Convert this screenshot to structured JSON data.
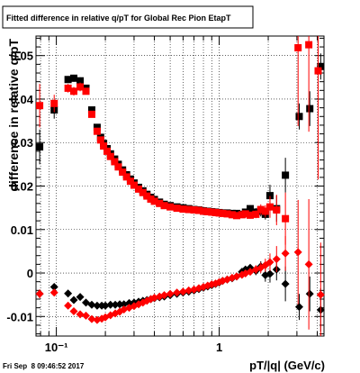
{
  "chart_data": {
    "type": "scatter",
    "title": "Fitted difference in relative q/pT for Global Rec Pion EtapT",
    "xlabel": "pT/|q| (GeV/c)",
    "ylabel": "difference in relative q/pT",
    "xscale": "log",
    "xlim": [
      0.075,
      4.4
    ],
    "ylim": [
      -0.0145,
      0.0545
    ],
    "x_ticks": [
      {
        "value": 0.1,
        "label": "10⁻¹"
      },
      {
        "value": 1,
        "label": "1"
      }
    ],
    "y_ticks": [
      {
        "value": -0.01,
        "label": "-0.01"
      },
      {
        "value": 0,
        "label": "0"
      },
      {
        "value": 0.01,
        "label": "0.01"
      },
      {
        "value": 0.02,
        "label": "0.02"
      },
      {
        "value": 0.03,
        "label": "0.03"
      },
      {
        "value": 0.04,
        "label": "0.04"
      },
      {
        "value": 0.05,
        "label": "0.05"
      }
    ],
    "grid": true,
    "footer": "Fri Sep  8 09:46:52 2017",
    "series": [
      {
        "marker": "square",
        "color": "#000000",
        "points": [
          [
            0.079,
            0.029,
            0.004
          ],
          [
            0.097,
            0.0375,
            0.002
          ],
          [
            0.118,
            0.0445,
            0.0008
          ],
          [
            0.128,
            0.0448,
            0.0008
          ],
          [
            0.14,
            0.0442,
            0.0008
          ],
          [
            0.152,
            0.0425,
            0.0005
          ],
          [
            0.165,
            0.0375,
            0.0004
          ],
          [
            0.178,
            0.0335,
            0.0004
          ],
          [
            0.187,
            0.0312,
            0.0003
          ],
          [
            0.195,
            0.0298,
            0.0003
          ],
          [
            0.205,
            0.0286,
            0.0003
          ],
          [
            0.215,
            0.0274,
            0.0003
          ],
          [
            0.228,
            0.0262,
            0.0003
          ],
          [
            0.24,
            0.025,
            0.0003
          ],
          [
            0.255,
            0.0237,
            0.0003
          ],
          [
            0.27,
            0.0226,
            0.0003
          ],
          [
            0.285,
            0.0216,
            0.0003
          ],
          [
            0.3,
            0.0207,
            0.0003
          ],
          [
            0.32,
            0.0197,
            0.0003
          ],
          [
            0.34,
            0.0189,
            0.0003
          ],
          [
            0.36,
            0.0181,
            0.0003
          ],
          [
            0.38,
            0.0174,
            0.0003
          ],
          [
            0.4,
            0.0169,
            0.0003
          ],
          [
            0.43,
            0.0163,
            0.0003
          ],
          [
            0.46,
            0.0158,
            0.0003
          ],
          [
            0.5,
            0.0155,
            0.0003
          ],
          [
            0.55,
            0.0152,
            0.0003
          ],
          [
            0.6,
            0.015,
            0.0003
          ],
          [
            0.65,
            0.0148,
            0.0003
          ],
          [
            0.7,
            0.0146,
            0.0003
          ],
          [
            0.75,
            0.0145,
            0.0003
          ],
          [
            0.8,
            0.0143,
            0.0003
          ],
          [
            0.85,
            0.0142,
            0.0003
          ],
          [
            0.9,
            0.0141,
            0.0003
          ],
          [
            0.95,
            0.014,
            0.0003
          ],
          [
            1.0,
            0.0139,
            0.0003
          ],
          [
            1.05,
            0.0138,
            0.0003
          ],
          [
            1.12,
            0.0138,
            0.0004
          ],
          [
            1.2,
            0.0137,
            0.0004
          ],
          [
            1.28,
            0.0137,
            0.0004
          ],
          [
            1.38,
            0.0135,
            0.0005
          ],
          [
            1.45,
            0.014,
            0.0006
          ],
          [
            1.55,
            0.0148,
            0.0008
          ],
          [
            1.68,
            0.014,
            0.0009
          ],
          [
            1.8,
            0.0142,
            0.0012
          ],
          [
            1.92,
            0.0135,
            0.0012
          ],
          [
            2.05,
            0.0178,
            0.0025
          ],
          [
            2.25,
            0.0148,
            0.003
          ],
          [
            2.55,
            0.0225,
            0.004
          ],
          [
            3.1,
            0.036,
            0.003
          ],
          [
            3.6,
            0.0378,
            0.004
          ],
          [
            4.2,
            0.0475,
            0.003
          ]
        ]
      },
      {
        "marker": "square",
        "color": "#ff0000",
        "points": [
          [
            0.079,
            0.0385,
            0.005
          ],
          [
            0.097,
            0.039,
            0.002
          ],
          [
            0.118,
            0.0425,
            0.001
          ],
          [
            0.128,
            0.0418,
            0.001
          ],
          [
            0.14,
            0.0428,
            0.001
          ],
          [
            0.152,
            0.0418,
            0.0006
          ],
          [
            0.165,
            0.0365,
            0.0004
          ],
          [
            0.178,
            0.0326,
            0.0004
          ],
          [
            0.187,
            0.0306,
            0.0003
          ],
          [
            0.195,
            0.0292,
            0.0003
          ],
          [
            0.205,
            0.028,
            0.0003
          ],
          [
            0.215,
            0.0268,
            0.0003
          ],
          [
            0.228,
            0.0256,
            0.0003
          ],
          [
            0.24,
            0.0244,
            0.0003
          ],
          [
            0.255,
            0.0232,
            0.0003
          ],
          [
            0.27,
            0.0221,
            0.0003
          ],
          [
            0.285,
            0.0211,
            0.0003
          ],
          [
            0.3,
            0.0202,
            0.0003
          ],
          [
            0.32,
            0.0193,
            0.0003
          ],
          [
            0.34,
            0.0185,
            0.0003
          ],
          [
            0.36,
            0.0177,
            0.0003
          ],
          [
            0.38,
            0.017,
            0.0003
          ],
          [
            0.4,
            0.0165,
            0.0003
          ],
          [
            0.43,
            0.016,
            0.0003
          ],
          [
            0.46,
            0.0155,
            0.0003
          ],
          [
            0.5,
            0.0152,
            0.0003
          ],
          [
            0.55,
            0.0149,
            0.0003
          ],
          [
            0.6,
            0.0147,
            0.0003
          ],
          [
            0.65,
            0.0146,
            0.0003
          ],
          [
            0.7,
            0.0145,
            0.0003
          ],
          [
            0.75,
            0.0144,
            0.0003
          ],
          [
            0.8,
            0.0142,
            0.0003
          ],
          [
            0.85,
            0.0141,
            0.0003
          ],
          [
            0.9,
            0.014,
            0.0003
          ],
          [
            0.95,
            0.0139,
            0.0003
          ],
          [
            1.0,
            0.0138,
            0.0003
          ],
          [
            1.05,
            0.0137,
            0.0003
          ],
          [
            1.12,
            0.0136,
            0.0004
          ],
          [
            1.2,
            0.0134,
            0.0004
          ],
          [
            1.28,
            0.0132,
            0.0004
          ],
          [
            1.38,
            0.0134,
            0.0005
          ],
          [
            1.45,
            0.0136,
            0.0006
          ],
          [
            1.55,
            0.0133,
            0.0008
          ],
          [
            1.68,
            0.0135,
            0.0009
          ],
          [
            1.8,
            0.0146,
            0.0012
          ],
          [
            1.92,
            0.0142,
            0.0014
          ],
          [
            2.05,
            0.0152,
            0.0025
          ],
          [
            2.25,
            0.0145,
            0.0035
          ],
          [
            2.55,
            0.0125,
            0.006
          ],
          [
            3.05,
            0.0518,
            0.018
          ],
          [
            3.55,
            0.0525,
            0.02
          ],
          [
            4.05,
            0.0465,
            0.025
          ]
        ]
      },
      {
        "marker": "diamond",
        "color": "#000000",
        "points": [
          [
            0.079,
            -0.0048,
            0.001
          ],
          [
            0.097,
            -0.0032,
            0.0008
          ],
          [
            0.118,
            -0.0047,
            0.0005
          ],
          [
            0.128,
            -0.0062,
            0.0005
          ],
          [
            0.14,
            -0.0055,
            0.0005
          ],
          [
            0.152,
            -0.0068,
            0.0004
          ],
          [
            0.165,
            -0.0073,
            0.0004
          ],
          [
            0.178,
            -0.0075,
            0.0003
          ],
          [
            0.19,
            -0.0075,
            0.0003
          ],
          [
            0.2,
            -0.0075,
            0.0003
          ],
          [
            0.215,
            -0.0073,
            0.0003
          ],
          [
            0.23,
            -0.0073,
            0.0003
          ],
          [
            0.245,
            -0.0072,
            0.0003
          ],
          [
            0.26,
            -0.0072,
            0.0003
          ],
          [
            0.28,
            -0.0069,
            0.0003
          ],
          [
            0.3,
            -0.0068,
            0.0003
          ],
          [
            0.32,
            -0.0066,
            0.0003
          ],
          [
            0.34,
            -0.0064,
            0.0003
          ],
          [
            0.36,
            -0.0062,
            0.0003
          ],
          [
            0.38,
            -0.006,
            0.0003
          ],
          [
            0.4,
            -0.0058,
            0.0003
          ],
          [
            0.43,
            -0.0056,
            0.0003
          ],
          [
            0.46,
            -0.0054,
            0.0003
          ],
          [
            0.5,
            -0.0051,
            0.0003
          ],
          [
            0.55,
            -0.0048,
            0.0003
          ],
          [
            0.6,
            -0.0045,
            0.0003
          ],
          [
            0.65,
            -0.0043,
            0.0003
          ],
          [
            0.7,
            -0.004,
            0.0003
          ],
          [
            0.75,
            -0.0037,
            0.0003
          ],
          [
            0.8,
            -0.0034,
            0.0003
          ],
          [
            0.85,
            -0.0031,
            0.0003
          ],
          [
            0.9,
            -0.0028,
            0.0003
          ],
          [
            0.95,
            -0.0025,
            0.0003
          ],
          [
            1.0,
            -0.0022,
            0.0003
          ],
          [
            1.05,
            -0.0018,
            0.0003
          ],
          [
            1.12,
            -0.0015,
            0.0004
          ],
          [
            1.2,
            -0.0012,
            0.0004
          ],
          [
            1.28,
            -0.0008,
            0.0005
          ],
          [
            1.38,
            0.0003,
            0.0006
          ],
          [
            1.45,
            0.0008,
            0.0007
          ],
          [
            1.55,
            0.0012,
            0.0008
          ],
          [
            1.68,
            0.0005,
            0.001
          ],
          [
            1.8,
            0.0015,
            0.0012
          ],
          [
            1.92,
            -0.0005,
            0.0015
          ],
          [
            2.05,
            -0.0002,
            0.002
          ],
          [
            2.25,
            0.0008,
            0.0025
          ],
          [
            2.55,
            -0.0025,
            0.004
          ],
          [
            3.1,
            -0.0078,
            0.003
          ],
          [
            3.6,
            -0.0048,
            0.004
          ],
          [
            4.2,
            -0.0085,
            0.005
          ]
        ]
      },
      {
        "marker": "diamond",
        "color": "#ff0000",
        "points": [
          [
            0.079,
            -0.0048,
            0.001
          ],
          [
            0.097,
            -0.0045,
            0.0008
          ],
          [
            0.118,
            -0.0075,
            0.0005
          ],
          [
            0.128,
            -0.0088,
            0.0005
          ],
          [
            0.14,
            -0.0095,
            0.0005
          ],
          [
            0.152,
            -0.0098,
            0.0004
          ],
          [
            0.165,
            -0.0106,
            0.0004
          ],
          [
            0.178,
            -0.0108,
            0.0003
          ],
          [
            0.19,
            -0.0105,
            0.0003
          ],
          [
            0.2,
            -0.0102,
            0.0003
          ],
          [
            0.215,
            -0.0097,
            0.0003
          ],
          [
            0.23,
            -0.0093,
            0.0003
          ],
          [
            0.245,
            -0.0089,
            0.0003
          ],
          [
            0.26,
            -0.0084,
            0.0003
          ],
          [
            0.28,
            -0.008,
            0.0003
          ],
          [
            0.3,
            -0.0076,
            0.0003
          ],
          [
            0.32,
            -0.0072,
            0.0003
          ],
          [
            0.34,
            -0.0068,
            0.0003
          ],
          [
            0.36,
            -0.0064,
            0.0003
          ],
          [
            0.38,
            -0.006,
            0.0003
          ],
          [
            0.4,
            -0.0057,
            0.0003
          ],
          [
            0.43,
            -0.0054,
            0.0003
          ],
          [
            0.46,
            -0.0051,
            0.0003
          ],
          [
            0.5,
            -0.0048,
            0.0003
          ],
          [
            0.55,
            -0.0045,
            0.0003
          ],
          [
            0.6,
            -0.0043,
            0.0003
          ],
          [
            0.65,
            -0.004,
            0.0003
          ],
          [
            0.7,
            -0.0038,
            0.0003
          ],
          [
            0.75,
            -0.0035,
            0.0003
          ],
          [
            0.8,
            -0.0032,
            0.0003
          ],
          [
            0.85,
            -0.0029,
            0.0003
          ],
          [
            0.9,
            -0.0026,
            0.0003
          ],
          [
            0.95,
            -0.0024,
            0.0003
          ],
          [
            1.0,
            -0.0021,
            0.0003
          ],
          [
            1.05,
            -0.0018,
            0.0003
          ],
          [
            1.12,
            -0.0015,
            0.0004
          ],
          [
            1.2,
            -0.0011,
            0.0004
          ],
          [
            1.28,
            -0.0008,
            0.0005
          ],
          [
            1.38,
            -0.0004,
            0.0006
          ],
          [
            1.45,
            -0.0001,
            0.0007
          ],
          [
            1.55,
            0.0003,
            0.0008
          ],
          [
            1.68,
            0.0008,
            0.001
          ],
          [
            1.8,
            0.0012,
            0.0012
          ],
          [
            1.92,
            0.0018,
            0.0015
          ],
          [
            2.05,
            0.0025,
            0.002
          ],
          [
            2.25,
            0.0032,
            0.003
          ],
          [
            2.55,
            0.0045,
            0.004
          ],
          [
            3.05,
            0.0048,
            0.012
          ],
          [
            3.55,
            0.002,
            0.015
          ],
          [
            4.2,
            -0.005,
            0.012
          ]
        ]
      }
    ]
  }
}
